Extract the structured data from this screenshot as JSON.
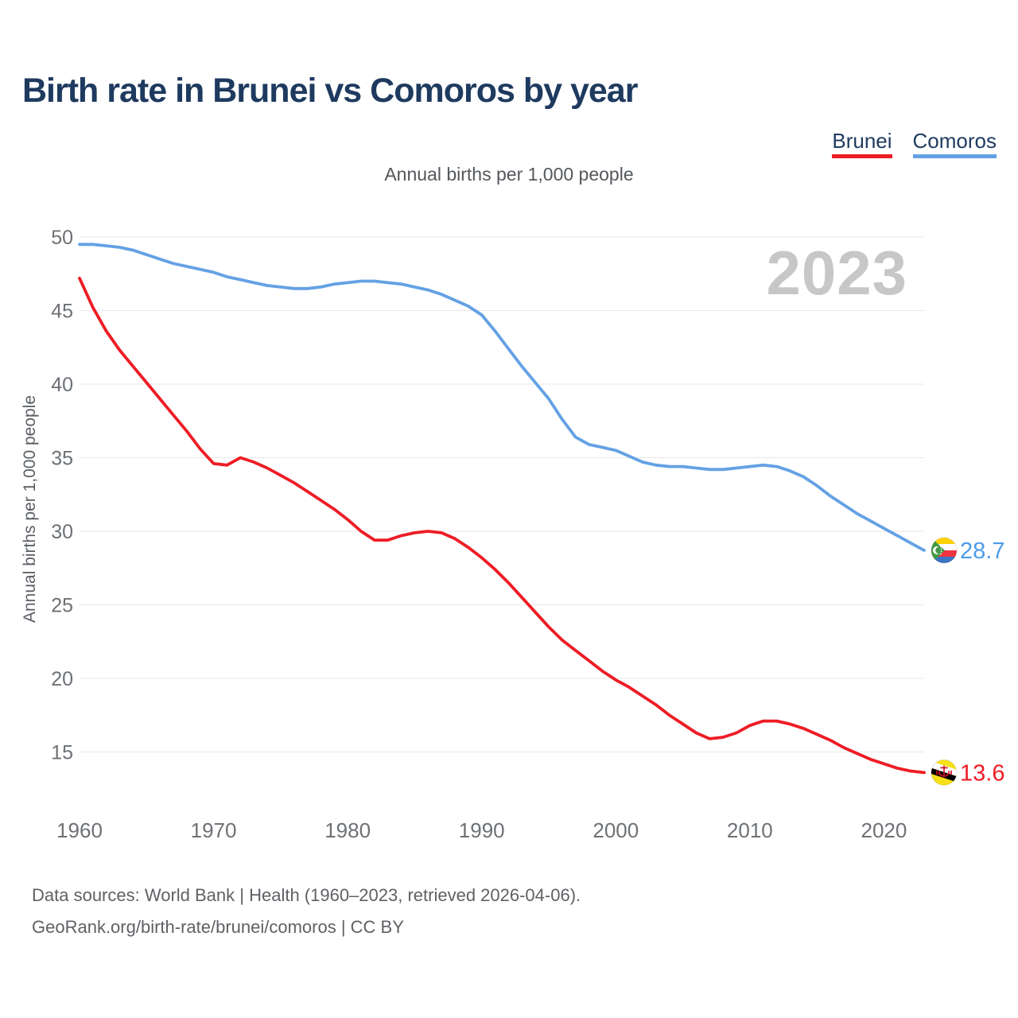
{
  "page": {
    "title": "Birth rate in Brunei vs Comoros by year",
    "subtitle": "Annual births per 1,000 people",
    "watermark": "2023",
    "footer_line1": "Data sources: World Bank | Health (1960–2023, retrieved 2026-04-06).",
    "footer_line2": "GeoRank.org/birth-rate/brunei/comoros | CC BY"
  },
  "legend": [
    {
      "label": "Brunei",
      "color": "#ee1c25"
    },
    {
      "label": "Comoros",
      "color": "#64a1e4"
    }
  ],
  "chart_data": {
    "type": "line",
    "title": "Birth rate in Brunei vs Comoros by year",
    "ylabel": "Annual births per 1,000 people",
    "xlabel": "",
    "xlim": [
      1960,
      2023
    ],
    "ylim": [
      13,
      51
    ],
    "grid": "horizontal",
    "legend_position": "top-right",
    "xticks": [
      1960,
      1970,
      1980,
      1990,
      2000,
      2010,
      2020
    ],
    "yticks": [
      15,
      20,
      25,
      30,
      35,
      40,
      45,
      50
    ],
    "x": [
      1960,
      1961,
      1962,
      1963,
      1964,
      1965,
      1966,
      1967,
      1968,
      1969,
      1970,
      1971,
      1972,
      1973,
      1974,
      1975,
      1976,
      1977,
      1978,
      1979,
      1980,
      1981,
      1982,
      1983,
      1984,
      1985,
      1986,
      1987,
      1988,
      1989,
      1990,
      1991,
      1992,
      1993,
      1994,
      1995,
      1996,
      1997,
      1998,
      1999,
      2000,
      2001,
      2002,
      2003,
      2004,
      2005,
      2006,
      2007,
      2008,
      2009,
      2010,
      2011,
      2012,
      2013,
      2014,
      2015,
      2016,
      2017,
      2018,
      2019,
      2020,
      2021,
      2022,
      2023
    ],
    "series": [
      {
        "name": "Brunei",
        "color": "#ee1c25",
        "end_label": "13.6",
        "flag": "brunei",
        "values": [
          47.2,
          45.2,
          43.6,
          42.3,
          41.2,
          40.1,
          39.0,
          37.9,
          36.8,
          35.6,
          34.6,
          34.5,
          35.0,
          34.7,
          34.3,
          33.8,
          33.3,
          32.7,
          32.1,
          31.5,
          30.8,
          30.0,
          29.4,
          29.4,
          29.7,
          29.9,
          30.0,
          29.9,
          29.5,
          28.9,
          28.2,
          27.4,
          26.5,
          25.5,
          24.5,
          23.5,
          22.6,
          21.9,
          21.2,
          20.5,
          19.9,
          19.4,
          18.8,
          18.2,
          17.5,
          16.9,
          16.3,
          15.9,
          16.0,
          16.3,
          16.8,
          17.1,
          17.1,
          16.9,
          16.6,
          16.2,
          15.8,
          15.3,
          14.9,
          14.5,
          14.2,
          13.9,
          13.7,
          13.6
        ]
      },
      {
        "name": "Comoros",
        "color": "#64a1e4",
        "end_label": "28.7",
        "flag": "comoros",
        "values": [
          49.5,
          49.5,
          49.4,
          49.3,
          49.1,
          48.8,
          48.5,
          48.2,
          48.0,
          47.8,
          47.6,
          47.3,
          47.1,
          46.9,
          46.7,
          46.6,
          46.5,
          46.5,
          46.6,
          46.8,
          46.9,
          47.0,
          47.0,
          46.9,
          46.8,
          46.6,
          46.4,
          46.1,
          45.7,
          45.3,
          44.7,
          43.6,
          42.4,
          41.2,
          40.1,
          39.0,
          37.6,
          36.4,
          35.9,
          35.7,
          35.5,
          35.1,
          34.7,
          34.5,
          34.4,
          34.4,
          34.3,
          34.2,
          34.2,
          34.3,
          34.4,
          34.5,
          34.4,
          34.1,
          33.7,
          33.1,
          32.4,
          31.8,
          31.2,
          30.7,
          30.2,
          29.7,
          29.2,
          28.7
        ]
      }
    ]
  }
}
